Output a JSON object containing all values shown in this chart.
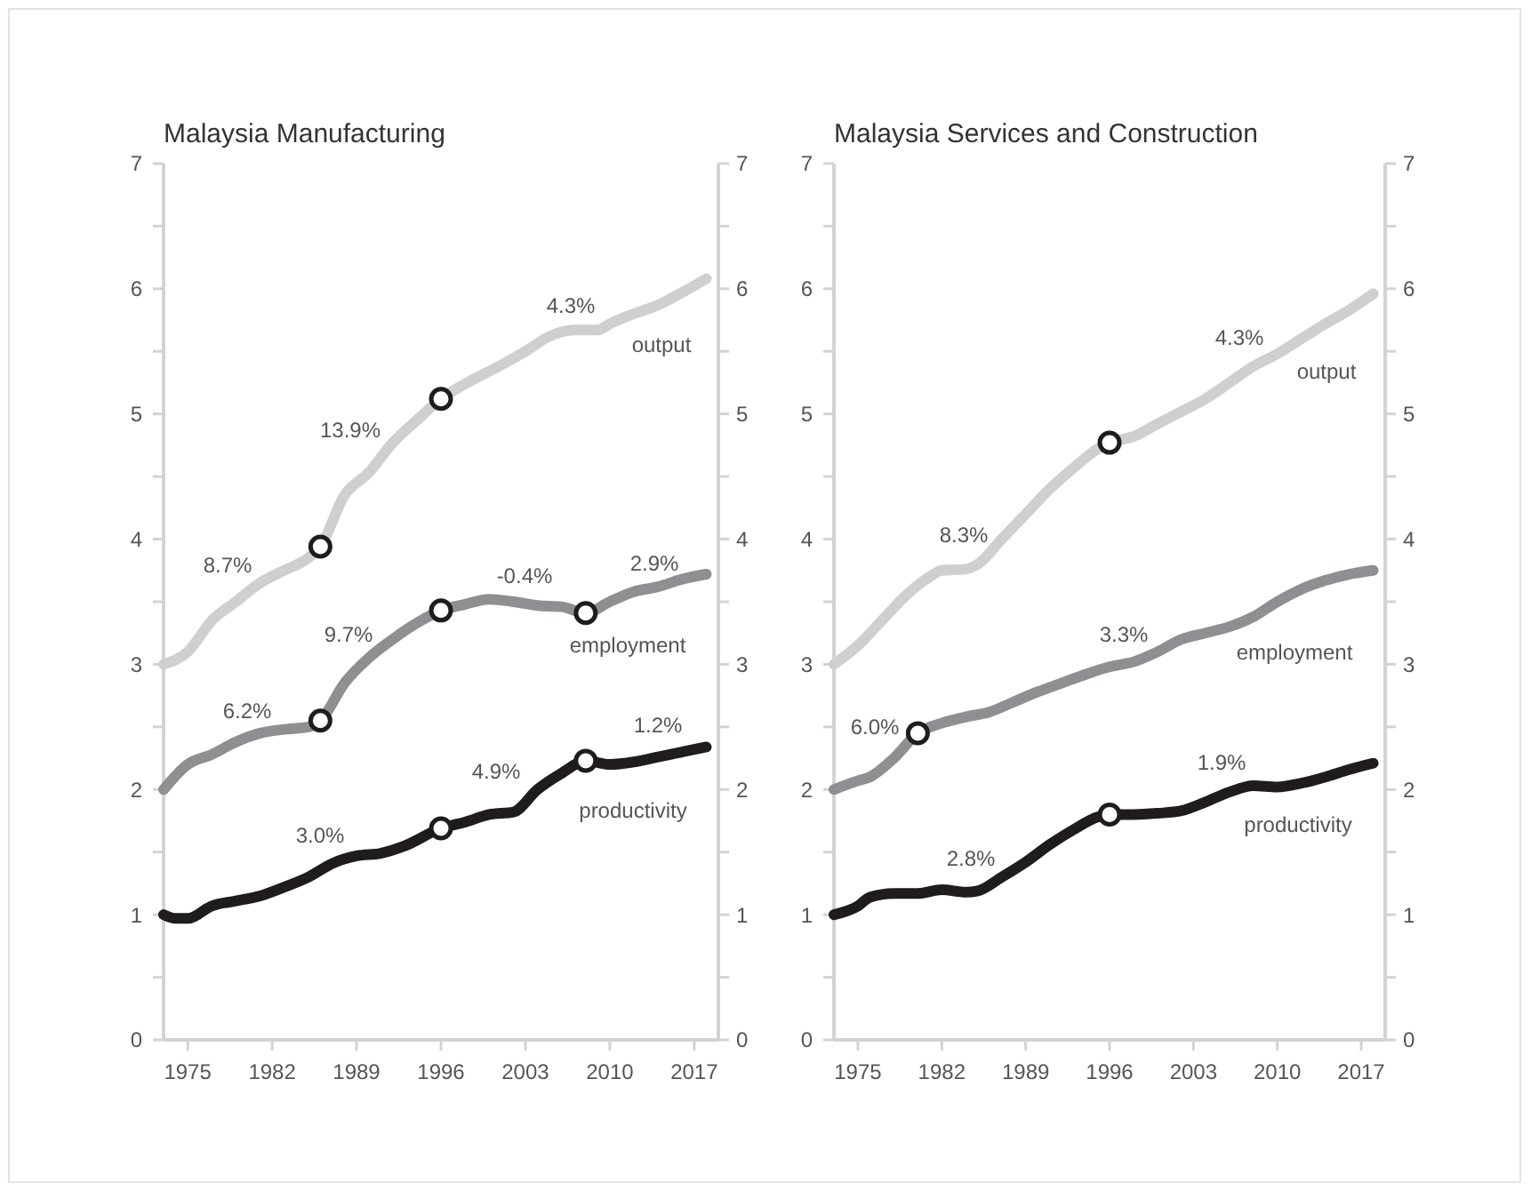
{
  "chart_data": [
    {
      "type": "line",
      "title": "Malaysia Manufacturing",
      "legend": false,
      "grid": false,
      "marker": "none",
      "line_style": "solid",
      "xlim": [
        1973,
        2019
      ],
      "xticks": [
        1975,
        1982,
        1989,
        1996,
        2003,
        2010,
        2017
      ],
      "ylim": [
        0,
        7
      ],
      "yticks": [
        0,
        {
          "value": 0.5,
          "label": null
        },
        1,
        {
          "value": 1.5,
          "label": null
        },
        2,
        {
          "value": 2.5,
          "label": null
        },
        3,
        {
          "value": 3.5,
          "label": null
        },
        4,
        {
          "value": 4.5,
          "label": null
        },
        5,
        {
          "value": 5.5,
          "label": null
        },
        6,
        {
          "value": 6.5,
          "label": null
        },
        7
      ],
      "y2lim": [
        0,
        7
      ],
      "y2ticks": [
        0,
        {
          "value": 0.5,
          "label": null
        },
        1,
        {
          "value": 1.5,
          "label": null
        },
        2,
        {
          "value": 2.5,
          "label": null
        },
        3,
        {
          "value": 3.5,
          "label": null
        },
        4,
        {
          "value": 4.5,
          "label": null
        },
        5,
        {
          "value": 5.5,
          "label": null
        },
        6,
        {
          "value": 6.5,
          "label": null
        },
        7
      ],
      "series": [
        {
          "name": "output",
          "color": "#cfcfd0",
          "x": [
            1973,
            1975,
            1977,
            1979,
            1981,
            1983,
            1985,
            1986,
            1988,
            1990,
            1992,
            1994,
            1996,
            1998,
            2000,
            2003,
            2005,
            2007,
            2009,
            2010,
            2012,
            2014,
            2016,
            2018
          ],
          "values": [
            3.0,
            3.1,
            3.35,
            3.5,
            3.65,
            3.75,
            3.85,
            3.94,
            4.35,
            4.53,
            4.77,
            4.95,
            5.12,
            5.24,
            5.34,
            5.5,
            5.62,
            5.67,
            5.67,
            5.72,
            5.8,
            5.87,
            5.97,
            6.08
          ]
        },
        {
          "name": "employment",
          "color": "#8e8f91",
          "x": [
            1973,
            1975,
            1977,
            1979,
            1981,
            1983,
            1985,
            1986,
            1988,
            1990,
            1992,
            1994,
            1996,
            1998,
            2000,
            2002,
            2004,
            2006,
            2008,
            2010,
            2012,
            2014,
            2016,
            2018
          ],
          "values": [
            2.0,
            2.2,
            2.28,
            2.38,
            2.45,
            2.48,
            2.5,
            2.55,
            2.85,
            3.05,
            3.2,
            3.33,
            3.43,
            3.48,
            3.52,
            3.5,
            3.47,
            3.46,
            3.41,
            3.5,
            3.58,
            3.62,
            3.68,
            3.72
          ]
        },
        {
          "name": "productivity",
          "color": "#1f1c1d",
          "x": [
            1973,
            1974,
            1975,
            1977,
            1979,
            1981,
            1983,
            1985,
            1987,
            1989,
            1991,
            1993,
            1996,
            1998,
            2000,
            2002,
            2004,
            2006,
            2008,
            2010,
            2012,
            2014,
            2016,
            2018
          ],
          "values": [
            1.0,
            0.97,
            0.97,
            1.07,
            1.11,
            1.15,
            1.22,
            1.3,
            1.41,
            1.47,
            1.49,
            1.55,
            1.69,
            1.74,
            1.8,
            1.82,
            2.0,
            2.13,
            2.23,
            2.2,
            2.22,
            2.26,
            2.3,
            2.34
          ]
        },
        {
          "type": "scatter",
          "marker": "circle",
          "color": "#1f1c1d",
          "x": [
            1986,
            1996,
            1986,
            1996,
            2008,
            1996,
            2008
          ],
          "values": [
            3.94,
            5.12,
            2.55,
            3.43,
            3.41,
            1.69,
            2.23
          ]
        }
      ],
      "annotations": [
        "8.7%",
        "13.9%",
        "4.3%",
        "6.2%",
        "9.7%",
        "-0.4%",
        "2.9%",
        "3.0%",
        "4.9%",
        "1.2%"
      ]
    },
    {
      "type": "line",
      "title": "Malaysia Services and Construction",
      "legend": false,
      "grid": false,
      "marker": "none",
      "line_style": "solid",
      "xlim": [
        1973,
        2019
      ],
      "xticks": [
        1975,
        1982,
        1989,
        1996,
        2003,
        2010,
        2017
      ],
      "ylim": [
        0,
        7
      ],
      "yticks": [
        0,
        {
          "value": 0.5,
          "label": null
        },
        1,
        {
          "value": 1.5,
          "label": null
        },
        2,
        {
          "value": 2.5,
          "label": null
        },
        3,
        {
          "value": 3.5,
          "label": null
        },
        4,
        {
          "value": 4.5,
          "label": null
        },
        5,
        {
          "value": 5.5,
          "label": null
        },
        6,
        {
          "value": 6.5,
          "label": null
        },
        7
      ],
      "y2lim": [
        0,
        7
      ],
      "y2ticks": [
        0,
        {
          "value": 0.5,
          "label": null
        },
        1,
        {
          "value": 1.5,
          "label": null
        },
        2,
        {
          "value": 2.5,
          "label": null
        },
        3,
        {
          "value": 3.5,
          "label": null
        },
        4,
        {
          "value": 4.5,
          "label": null
        },
        5,
        {
          "value": 5.5,
          "label": null
        },
        6,
        {
          "value": 6.5,
          "label": null
        },
        7
      ],
      "series": [
        {
          "name": "output",
          "color": "#cfcfd0",
          "x": [
            1973,
            1975,
            1977,
            1979,
            1981,
            1982,
            1984,
            1985,
            1987,
            1989,
            1991,
            1993,
            1995,
            1996,
            1998,
            2000,
            2002,
            2004,
            2006,
            2008,
            2010,
            2012,
            2014,
            2016,
            2018
          ],
          "values": [
            3.0,
            3.15,
            3.35,
            3.55,
            3.7,
            3.75,
            3.76,
            3.8,
            4.0,
            4.2,
            4.4,
            4.57,
            4.72,
            4.77,
            4.82,
            4.92,
            5.02,
            5.12,
            5.25,
            5.38,
            5.48,
            5.6,
            5.72,
            5.83,
            5.96
          ]
        },
        {
          "name": "employment",
          "color": "#8e8f91",
          "x": [
            1973,
            1975,
            1976,
            1978,
            1980,
            1982,
            1984,
            1986,
            1988,
            1990,
            1992,
            1994,
            1996,
            1998,
            2000,
            2002,
            2004,
            2006,
            2008,
            2010,
            2012,
            2014,
            2016,
            2018
          ],
          "values": [
            2.0,
            2.07,
            2.1,
            2.25,
            2.45,
            2.53,
            2.58,
            2.62,
            2.7,
            2.78,
            2.85,
            2.92,
            2.98,
            3.02,
            3.1,
            3.2,
            3.25,
            3.3,
            3.38,
            3.5,
            3.6,
            3.67,
            3.72,
            3.75
          ]
        },
        {
          "name": "productivity",
          "color": "#1f1c1d",
          "x": [
            1973,
            1975,
            1976,
            1978,
            1980,
            1982,
            1984,
            1985,
            1987,
            1989,
            1991,
            1993,
            1995,
            1996,
            1998,
            2000,
            2002,
            2004,
            2006,
            2008,
            2010,
            2012,
            2014,
            2016,
            2018
          ],
          "values": [
            1.0,
            1.07,
            1.14,
            1.17,
            1.17,
            1.2,
            1.18,
            1.19,
            1.3,
            1.42,
            1.56,
            1.68,
            1.78,
            1.8,
            1.8,
            1.81,
            1.83,
            1.9,
            1.98,
            2.03,
            2.02,
            2.05,
            2.1,
            2.16,
            2.21
          ]
        },
        {
          "type": "scatter",
          "marker": "circle",
          "color": "#1f1c1d",
          "x": [
            1996,
            1980,
            1996
          ],
          "values": [
            4.77,
            2.45,
            1.8
          ]
        }
      ],
      "annotations": [
        "8.3%",
        "4.3%",
        "6.0%",
        "3.3%",
        "2.8%",
        "1.9%"
      ]
    }
  ]
}
